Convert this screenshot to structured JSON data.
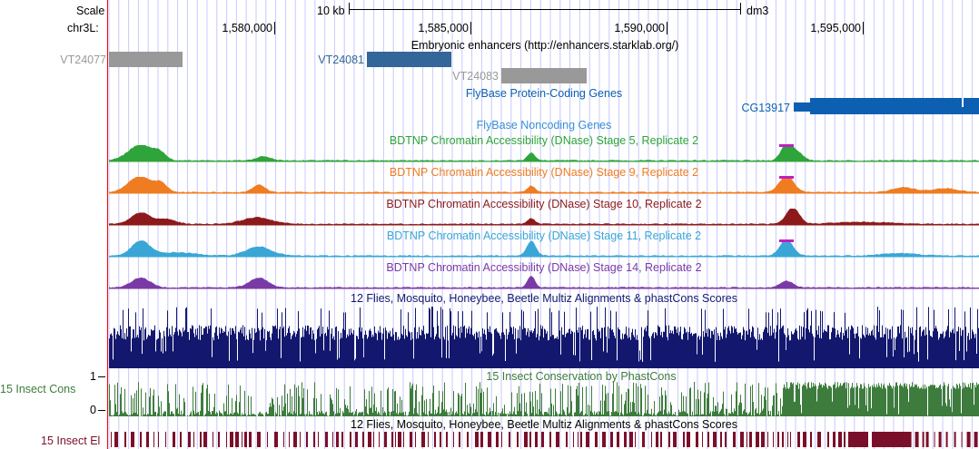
{
  "colors": {
    "accent_red": "#ff0000",
    "guide": "#c8c8ff",
    "enh_active": "#336699",
    "enh_inactive": "#999999",
    "gene": "#0c5fb1",
    "noncoding": "#3a8fd6",
    "dnase5": "#2ea43a",
    "dnase9": "#f07c22",
    "dnase10": "#8c1a1a",
    "dnase11": "#3aa6d6",
    "dnase14": "#7a3aa6",
    "multiz": "#13186e",
    "cons": "#3d7c3d",
    "elements": "#7a0f2a",
    "peak_top": "#c020c0"
  },
  "ruler": {
    "scale_label": "Scale",
    "chrom_label": "chr3L:",
    "scale_bar_text": "10 kb",
    "assembly": "dm3",
    "positions": [
      "1,580,000",
      "1,585,000",
      "1,590,000",
      "1,595,000"
    ]
  },
  "enhancers": {
    "title": "Embryonic enhancers (http://enhancers.starklab.org/)",
    "items": [
      {
        "label": "VT24077",
        "active": false
      },
      {
        "label": "VT24081",
        "active": true
      },
      {
        "label": "VT24083",
        "active": false
      }
    ]
  },
  "genes": {
    "title": "FlyBase Protein-Coding Genes",
    "items": [
      {
        "label": "CG13917"
      }
    ]
  },
  "noncoding": {
    "title": "FlyBase Noncoding Genes"
  },
  "dnase_tracks": [
    {
      "title": "BDTNP Chromatin Accessibility (DNase) Stage 5, Replicate 2",
      "color_key": "dnase5"
    },
    {
      "title": "BDTNP Chromatin Accessibility (DNase) Stage 9, Replicate 2",
      "color_key": "dnase9"
    },
    {
      "title": "BDTNP Chromatin Accessibility (DNase) Stage 10, Replicate 2",
      "color_key": "dnase10"
    },
    {
      "title": "BDTNP Chromatin Accessibility (DNase) Stage 11, Replicate 2",
      "color_key": "dnase11"
    },
    {
      "title": "BDTNP Chromatin Accessibility (DNase) Stage 14, Replicate 2",
      "color_key": "dnase14"
    }
  ],
  "multiz": {
    "title": "12 Flies, Mosquito, Honeybee, Beetle Multiz Alignments & phastCons Scores"
  },
  "conservation": {
    "title": "15 Insect Conservation by PhastCons",
    "side_label": "15 Insect Cons",
    "y_max": "1",
    "y_min": "0"
  },
  "elements": {
    "title": "12 Flies, Mosquito, Honeybee, Beetle Multiz Alignments & phastCons Scores",
    "side_label": "15 Insect El"
  }
}
